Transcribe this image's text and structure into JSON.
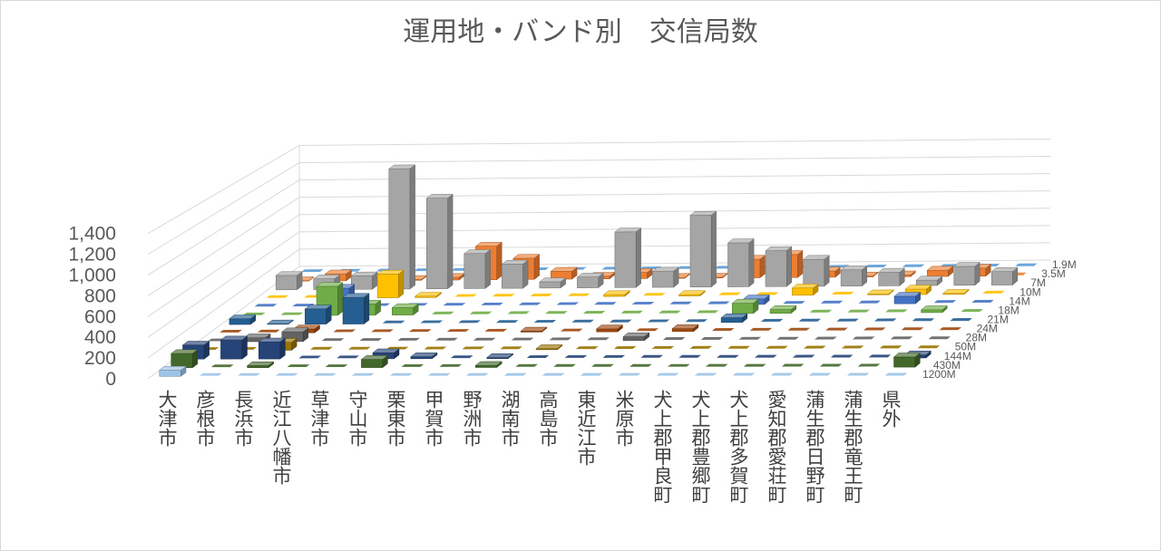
{
  "chart_data": {
    "type": "bar",
    "subtype": "3d-column",
    "title": "運用地・バンド別　交信局数",
    "ylabel": "",
    "ylim": [
      0,
      1400
    ],
    "yticks": [
      0,
      200,
      400,
      600,
      800,
      1000,
      1200,
      1400
    ],
    "yticks_labels": [
      "0",
      "200",
      "400",
      "600",
      "800",
      "1,000",
      "1,200",
      "1,400"
    ],
    "grid": true,
    "legend": "none",
    "categories": [
      "大津市",
      "彦根市",
      "長浜市",
      "近江八幡市",
      "草津市",
      "守山市",
      "栗東市",
      "甲賀市",
      "野洲市",
      "湖南市",
      "高島市",
      "東近江市",
      "米原市",
      "犬上郡甲良町",
      "犬上郡豊郷町",
      "犬上郡多賀町",
      "愛知郡愛荘町",
      "蒲生郡日野町",
      "蒲生郡竜王町",
      "県外"
    ],
    "series": [
      {
        "name": "1.9M",
        "color": "#5B9BD5",
        "values": [
          0,
          0,
          0,
          0,
          0,
          0,
          0,
          0,
          0,
          0,
          0,
          0,
          0,
          0,
          0,
          0,
          0,
          0,
          0,
          0
        ]
      },
      {
        "name": "3.5M",
        "color": "#ED7D31",
        "values": [
          5,
          80,
          20,
          10,
          30,
          380,
          240,
          90,
          30,
          70,
          10,
          10,
          210,
          260,
          70,
          10,
          20,
          70,
          90,
          0
        ]
      },
      {
        "name": "7M",
        "color": "#A5A5A5",
        "values": [
          160,
          120,
          150,
          1340,
          1010,
          390,
          270,
          70,
          120,
          620,
          180,
          800,
          490,
          400,
          300,
          180,
          150,
          60,
          210,
          150
        ]
      },
      {
        "name": "10M",
        "color": "#FFC000",
        "values": [
          0,
          0,
          0,
          260,
          15,
          0,
          0,
          0,
          0,
          20,
          0,
          15,
          0,
          0,
          80,
          0,
          10,
          60,
          10,
          0
        ]
      },
      {
        "name": "14M",
        "color": "#4472C4",
        "values": [
          0,
          0,
          200,
          0,
          0,
          0,
          0,
          0,
          0,
          0,
          0,
          0,
          0,
          60,
          0,
          0,
          0,
          80,
          0,
          0
        ]
      },
      {
        "name": "18M",
        "color": "#70AD47",
        "values": [
          0,
          0,
          310,
          120,
          80,
          0,
          0,
          0,
          0,
          0,
          0,
          0,
          0,
          110,
          40,
          0,
          0,
          0,
          30,
          0
        ]
      },
      {
        "name": "21M",
        "color": "#255E91",
        "values": [
          60,
          5,
          160,
          280,
          0,
          0,
          0,
          0,
          0,
          0,
          0,
          0,
          0,
          50,
          0,
          0,
          0,
          0,
          0,
          0
        ]
      },
      {
        "name": "24M",
        "color": "#9E480E",
        "values": [
          0,
          0,
          40,
          0,
          0,
          0,
          0,
          0,
          10,
          0,
          30,
          0,
          30,
          0,
          0,
          0,
          0,
          0,
          0,
          0
        ]
      },
      {
        "name": "28M",
        "color": "#636363",
        "values": [
          0,
          40,
          100,
          0,
          0,
          0,
          0,
          0,
          0,
          0,
          0,
          40,
          0,
          0,
          0,
          0,
          0,
          0,
          0,
          0
        ]
      },
      {
        "name": "50M",
        "color": "#997300",
        "values": [
          0,
          0,
          80,
          0,
          0,
          0,
          0,
          0,
          0,
          10,
          0,
          0,
          0,
          0,
          0,
          0,
          0,
          0,
          0,
          0
        ]
      },
      {
        "name": "144M",
        "color": "#264478",
        "values": [
          140,
          190,
          170,
          0,
          0,
          60,
          20,
          0,
          10,
          0,
          0,
          0,
          0,
          0,
          0,
          0,
          0,
          0,
          0,
          30
        ]
      },
      {
        "name": "430M",
        "color": "#43682B",
        "values": [
          140,
          0,
          20,
          0,
          0,
          80,
          0,
          0,
          20,
          0,
          0,
          0,
          0,
          0,
          0,
          0,
          0,
          0,
          0,
          100
        ]
      },
      {
        "name": "1200M",
        "color": "#9DC3E6",
        "values": [
          60,
          0,
          0,
          0,
          0,
          0,
          0,
          0,
          0,
          0,
          0,
          0,
          0,
          0,
          0,
          0,
          0,
          0,
          0,
          0
        ]
      }
    ]
  }
}
